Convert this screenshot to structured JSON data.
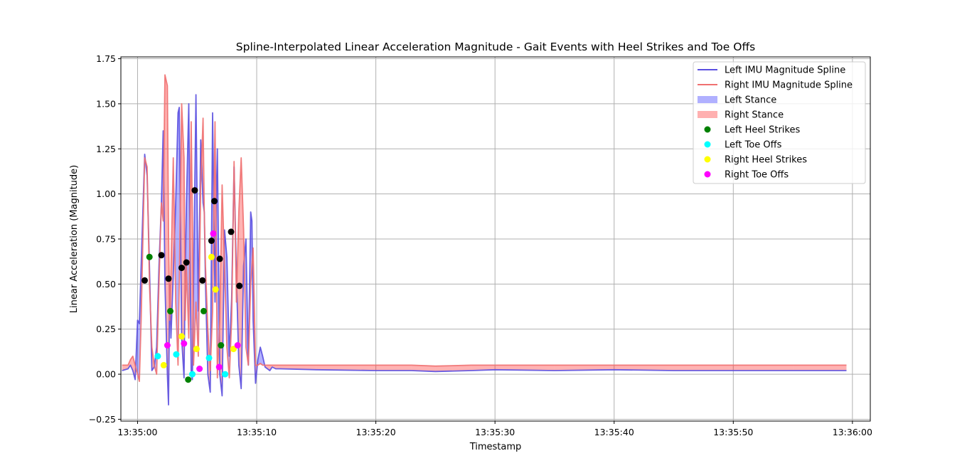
{
  "chart_data": {
    "type": "line",
    "title": "Spline-Interpolated Linear Acceleration Magnitude - Gait Events with Heel Strikes and Toe Offs",
    "xlabel": "Timestamp",
    "ylabel": "Linear Acceleration (Magnitude)",
    "x_unit": "seconds after 13:35:00",
    "xlim": [
      -1.4,
      61.5
    ],
    "ylim": [
      -0.26,
      1.76
    ],
    "grid": true,
    "legend_position": "top-right",
    "x_ticks": [
      {
        "value": 0,
        "label": "13:35:00"
      },
      {
        "value": 10,
        "label": "13:35:10"
      },
      {
        "value": 20,
        "label": "13:35:20"
      },
      {
        "value": 30,
        "label": "13:35:30"
      },
      {
        "value": 40,
        "label": "13:35:40"
      },
      {
        "value": 50,
        "label": "13:35:50"
      },
      {
        "value": 60,
        "label": "13:36:00"
      }
    ],
    "y_ticks": [
      {
        "value": -0.25,
        "label": "−0.25"
      },
      {
        "value": 0.0,
        "label": "0.00"
      },
      {
        "value": 0.25,
        "label": "0.25"
      },
      {
        "value": 0.5,
        "label": "0.50"
      },
      {
        "value": 0.75,
        "label": "0.75"
      },
      {
        "value": 1.0,
        "label": "1.00"
      },
      {
        "value": 1.25,
        "label": "1.25"
      },
      {
        "value": 1.5,
        "label": "1.50"
      },
      {
        "value": 1.75,
        "label": "1.75"
      }
    ],
    "series": [
      {
        "name": "Left IMU Magnitude Spline",
        "kind": "line",
        "color": "#5a4fe0",
        "x": [
          -1.3,
          -0.8,
          -0.6,
          -0.4,
          -0.2,
          0.0,
          0.15,
          0.3,
          0.6,
          0.8,
          1.0,
          1.2,
          1.4,
          1.6,
          1.8,
          2.0,
          2.15,
          2.3,
          2.5,
          2.6,
          2.7,
          2.8,
          3.0,
          3.2,
          3.4,
          3.5,
          3.7,
          3.9,
          4.0,
          4.1,
          4.3,
          4.5,
          4.6,
          4.7,
          4.9,
          5.1,
          5.3,
          5.5,
          5.6,
          5.7,
          5.9,
          6.1,
          6.3,
          6.5,
          6.6,
          6.7,
          6.9,
          7.1,
          7.3,
          7.5,
          7.7,
          7.9,
          8.1,
          8.3,
          8.5,
          8.7,
          8.9,
          9.1,
          9.3,
          9.5,
          9.6,
          9.7,
          9.9,
          10.1,
          10.3,
          10.5,
          10.7,
          10.9,
          11.1,
          11.3,
          11.6,
          12.0,
          15.0,
          20.0,
          23.0,
          25.0,
          28.0,
          30.0,
          35.0,
          40.0,
          45.0,
          50.0,
          55.0,
          59.5
        ],
        "y": [
          0.02,
          0.03,
          0.05,
          0.02,
          -0.03,
          0.3,
          0.28,
          0.6,
          1.22,
          1.1,
          0.6,
          0.02,
          0.04,
          0.15,
          0.6,
          0.95,
          1.35,
          0.5,
          0.0,
          -0.17,
          0.5,
          0.2,
          0.55,
          0.95,
          1.45,
          1.48,
          0.2,
          -0.02,
          0.55,
          0.95,
          1.5,
          0.0,
          -0.03,
          0.5,
          1.55,
          0.35,
          1.3,
          0.95,
          0.9,
          0.5,
          0.0,
          -0.1,
          1.45,
          0.4,
          0.95,
          1.25,
          0.0,
          -0.12,
          0.8,
          0.65,
          0.1,
          0.42,
          1.15,
          0.55,
          0.05,
          -0.08,
          0.6,
          0.75,
          0.05,
          0.9,
          0.85,
          0.3,
          -0.05,
          0.08,
          0.15,
          0.1,
          0.04,
          0.03,
          0.02,
          0.04,
          0.03,
          0.03,
          0.025,
          0.02,
          0.02,
          0.015,
          0.02,
          0.025,
          0.02,
          0.025,
          0.02,
          0.02,
          0.02,
          0.02
        ]
      },
      {
        "name": "Right IMU Magnitude Spline",
        "kind": "line",
        "color": "#f07070",
        "x": [
          -1.3,
          -0.8,
          -0.6,
          -0.4,
          -0.2,
          0.0,
          0.15,
          0.3,
          0.6,
          0.8,
          1.0,
          1.2,
          1.4,
          1.6,
          1.8,
          2.0,
          2.15,
          2.3,
          2.5,
          2.6,
          2.7,
          2.8,
          3.0,
          3.2,
          3.4,
          3.5,
          3.7,
          3.9,
          4.0,
          4.1,
          4.3,
          4.5,
          4.6,
          4.7,
          4.9,
          5.1,
          5.3,
          5.5,
          5.6,
          5.7,
          5.9,
          6.1,
          6.3,
          6.5,
          6.6,
          6.7,
          6.9,
          7.1,
          7.3,
          7.5,
          7.7,
          7.9,
          8.1,
          8.3,
          8.5,
          8.7,
          8.9,
          9.1,
          9.3,
          9.5,
          9.6,
          9.7,
          9.9,
          10.1,
          10.3,
          10.5,
          10.7,
          10.9,
          11.1,
          11.3,
          11.6,
          12.0,
          15.0,
          20.0,
          23.0,
          25.0,
          28.0,
          30.0,
          35.0,
          40.0,
          45.0,
          50.0,
          55.0,
          59.5
        ],
        "y": [
          0.05,
          0.05,
          0.08,
          0.1,
          0.05,
          0.0,
          -0.04,
          0.3,
          1.2,
          1.15,
          0.5,
          0.15,
          0.05,
          0.0,
          0.5,
          0.95,
          0.85,
          1.66,
          1.6,
          0.8,
          0.3,
          0.55,
          1.2,
          0.4,
          0.05,
          0.5,
          1.5,
          1.2,
          0.3,
          0.6,
          0.2,
          1.4,
          0.9,
          0.05,
          0.4,
          0.1,
          1.05,
          1.42,
          0.9,
          0.6,
          0.25,
          0.02,
          0.35,
          1.4,
          0.7,
          -0.02,
          0.3,
          1.05,
          0.6,
          0.15,
          -0.02,
          0.3,
          1.18,
          0.4,
          0.9,
          1.2,
          0.8,
          0.15,
          0.05,
          0.5,
          0.6,
          0.7,
          0.05,
          0.05,
          0.06,
          0.05,
          0.05,
          0.05,
          0.05,
          0.05,
          0.05,
          0.05,
          0.05,
          0.05,
          0.05,
          0.045,
          0.05,
          0.05,
          0.05,
          0.05,
          0.05,
          0.05,
          0.05,
          0.05
        ]
      },
      {
        "name": "Left Stance",
        "kind": "fill",
        "color": "#0000ff",
        "opacity": 0.3
      },
      {
        "name": "Right Stance",
        "kind": "fill",
        "color": "#ff0000",
        "opacity": 0.3
      },
      {
        "name": "Left Heel Strikes",
        "kind": "scatter",
        "color": "#008000",
        "points": [
          [
            1.0,
            0.65
          ],
          [
            2.75,
            0.35
          ],
          [
            4.25,
            -0.03
          ],
          [
            5.55,
            0.35
          ],
          [
            7.0,
            0.16
          ]
        ]
      },
      {
        "name": "Left Toe Offs",
        "kind": "scatter",
        "color": "#00ffff",
        "points": [
          [
            1.7,
            0.1
          ],
          [
            3.25,
            0.11
          ],
          [
            4.6,
            0.0
          ],
          [
            6.0,
            0.09
          ],
          [
            7.35,
            0.0
          ]
        ]
      },
      {
        "name": "Right Heel Strikes",
        "kind": "scatter",
        "color": "#ffff00",
        "points": [
          [
            2.2,
            0.05
          ],
          [
            3.7,
            0.21
          ],
          [
            4.95,
            0.14
          ],
          [
            6.2,
            0.65
          ],
          [
            6.55,
            0.47
          ],
          [
            8.05,
            0.14
          ]
        ]
      },
      {
        "name": "Right Toe Offs",
        "kind": "scatter",
        "color": "#ff00ff",
        "points": [
          [
            2.5,
            0.16
          ],
          [
            3.9,
            0.17
          ],
          [
            5.2,
            0.03
          ],
          [
            6.35,
            0.78
          ],
          [
            6.85,
            0.04
          ],
          [
            8.4,
            0.16
          ]
        ]
      },
      {
        "name": "",
        "kind": "scatter",
        "color": "#000000",
        "points": [
          [
            0.6,
            0.52
          ],
          [
            2.0,
            0.66
          ],
          [
            2.6,
            0.53
          ],
          [
            3.7,
            0.59
          ],
          [
            4.1,
            0.62
          ],
          [
            4.8,
            1.02
          ],
          [
            5.45,
            0.52
          ],
          [
            6.2,
            0.74
          ],
          [
            6.45,
            0.96
          ],
          [
            6.9,
            0.64
          ],
          [
            7.85,
            0.79
          ],
          [
            8.55,
            0.49
          ]
        ]
      }
    ],
    "legend": [
      {
        "label": "Left IMU Magnitude Spline",
        "symbol": "line",
        "color": "#5a4fe0"
      },
      {
        "label": "Right IMU Magnitude Spline",
        "symbol": "line",
        "color": "#f07070"
      },
      {
        "label": "Left Stance",
        "symbol": "patch",
        "color": "#b0b0ff"
      },
      {
        "label": "Right Stance",
        "symbol": "patch",
        "color": "#ffb0b0"
      },
      {
        "label": "Left Heel Strikes",
        "symbol": "dot",
        "color": "#008000"
      },
      {
        "label": "Left Toe Offs",
        "symbol": "dot",
        "color": "#00ffff"
      },
      {
        "label": "Right Heel Strikes",
        "symbol": "dot",
        "color": "#ffff00"
      },
      {
        "label": "Right Toe Offs",
        "symbol": "dot",
        "color": "#ff00ff"
      }
    ]
  }
}
